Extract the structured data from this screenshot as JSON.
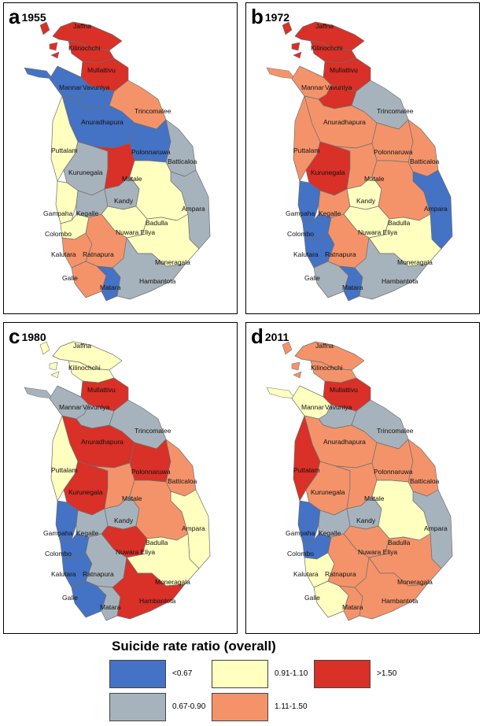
{
  "panels": [
    {
      "letter": "a",
      "year": "1955",
      "colors": {
        "Jaffna": "red",
        "Kilinochchi": "red",
        "Mullattivu": "red",
        "Mannar": "blue",
        "Vavuniya": "blue",
        "Trincomalee": "orange",
        "Anuradhapura": "blue",
        "Puttalam": "yellow",
        "Polonnaruwa": "blue",
        "Kurunegala": "grey",
        "Matale": "red",
        "Batticaloa": "grey",
        "Ampara": "grey",
        "Gampaha": "yellow",
        "Kegalle": "grey",
        "Kandy": "grey",
        "Badulla": "yellow",
        "Nuwara Eliya": "yellow",
        "Colombo": "yellow",
        "Kalutara": "orange",
        "Ratnapura": "orange",
        "Moneragala": "yellow",
        "Galle": "orange",
        "Matara": "blue",
        "Hambantota": "grey"
      }
    },
    {
      "letter": "b",
      "year": "1972",
      "colors": {
        "Jaffna": "red",
        "Kilinochchi": "red",
        "Mullattivu": "red",
        "Mannar": "orange",
        "Vavuniya": "red",
        "Trincomalee": "grey",
        "Anuradhapura": "orange",
        "Puttalam": "orange",
        "Polonnaruwa": "orange",
        "Kurunegala": "red",
        "Matale": "orange",
        "Batticaloa": "orange",
        "Ampara": "blue",
        "Gampaha": "blue",
        "Kegalle": "orange",
        "Kandy": "yellow",
        "Badulla": "orange",
        "Nuwara Eliya": "yellow",
        "Colombo": "blue",
        "Kalutara": "blue",
        "Ratnapura": "orange",
        "Moneragala": "yellow",
        "Galle": "grey",
        "Matara": "blue",
        "Hambantota": "grey"
      }
    },
    {
      "letter": "c",
      "year": "1980",
      "colors": {
        "Jaffna": "yellow",
        "Kilinochchi": "yellow",
        "Mullattivu": "red",
        "Mannar": "grey",
        "Vavuniya": "grey",
        "Trincomalee": "grey",
        "Anuradhapura": "red",
        "Puttalam": "yellow",
        "Polonnaruwa": "red",
        "Kurunegala": "red",
        "Matale": "orange",
        "Batticaloa": "orange",
        "Ampara": "yellow",
        "Gampaha": "blue",
        "Kegalle": "grey",
        "Kandy": "grey",
        "Badulla": "orange",
        "Nuwara Eliya": "red",
        "Colombo": "blue",
        "Kalutara": "blue",
        "Ratnapura": "grey",
        "Moneragala": "yellow",
        "Galle": "blue",
        "Matara": "grey",
        "Hambantota": "red"
      }
    },
    {
      "letter": "d",
      "year": "2011",
      "colors": {
        "Jaffna": "orange",
        "Kilinochchi": "orange",
        "Mullattivu": "red",
        "Mannar": "yellow",
        "Vavuniya": "grey",
        "Trincomalee": "grey",
        "Anuradhapura": "orange",
        "Puttalam": "red",
        "Polonnaruwa": "orange",
        "Kurunegala": "orange",
        "Matale": "orange",
        "Batticaloa": "orange",
        "Ampara": "grey",
        "Gampaha": "blue",
        "Kegalle": "grey",
        "Kandy": "grey",
        "Badulla": "yellow",
        "Nuwara Eliya": "orange",
        "Colombo": "blue",
        "Kalutara": "yellow",
        "Ratnapura": "orange",
        "Moneragala": "orange",
        "Galle": "yellow",
        "Matara": "orange",
        "Hambantota": "orange"
      }
    }
  ],
  "palette": {
    "blue": "#4472c4",
    "grey": "#a7b3bc",
    "yellow": "#ffffc0",
    "orange": "#f4936a",
    "red": "#d93027"
  },
  "legend": {
    "title": "Suicide rate ratio (overall)",
    "items": [
      {
        "label": "<0.67",
        "key": "blue"
      },
      {
        "label": "0.91-1.10",
        "key": "yellow"
      },
      {
        "label": ">1.50",
        "key": "red"
      },
      {
        "label": "0.67-0.90",
        "key": "grey"
      },
      {
        "label": "1.11-1.50",
        "key": "orange"
      }
    ]
  }
}
